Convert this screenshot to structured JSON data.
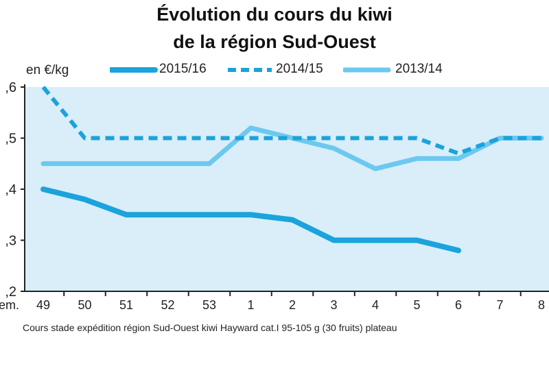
{
  "chart_data": {
    "type": "line",
    "title": [
      "Évolution du cours du kiwi",
      "de la région Sud-Ouest"
    ],
    "ylabel": "en €/kg",
    "xlabel": "em.",
    "caption": "Cours stade expédition région Sud-Ouest kiwi Hayward cat.I 95-105 g (30 fruits) plateau",
    "ylim": [
      0.2,
      0.6
    ],
    "yticks": [
      ",6",
      ",5",
      ",4",
      ",3",
      ",2"
    ],
    "ytick_values": [
      0.6,
      0.5,
      0.4,
      0.3,
      0.2
    ],
    "categories": [
      "49",
      "50",
      "51",
      "52",
      "53",
      "1",
      "2",
      "3",
      "4",
      "5",
      "6",
      "7",
      "8"
    ],
    "grid": false,
    "legend_position": "top",
    "series": [
      {
        "name": "2015/16",
        "style": "solid-thick",
        "color": "#1aa3dc",
        "values": [
          0.4,
          0.38,
          0.35,
          0.35,
          0.35,
          0.35,
          0.34,
          0.3,
          0.3,
          0.3,
          0.28,
          null,
          null
        ]
      },
      {
        "name": "2014/15",
        "style": "dashed",
        "color": "#1aa3dc",
        "values": [
          0.6,
          0.5,
          0.5,
          0.5,
          0.5,
          0.5,
          0.5,
          0.5,
          0.5,
          0.5,
          0.47,
          0.5,
          0.5
        ]
      },
      {
        "name": "2013/14",
        "style": "solid-light",
        "color": "#6dc8ef",
        "values": [
          0.45,
          0.45,
          0.45,
          0.45,
          0.45,
          0.52,
          0.5,
          0.48,
          0.44,
          0.46,
          0.46,
          0.5,
          0.5
        ]
      }
    ],
    "colors": {
      "plot_background": "#d9eef9",
      "axis": "#222222"
    }
  }
}
